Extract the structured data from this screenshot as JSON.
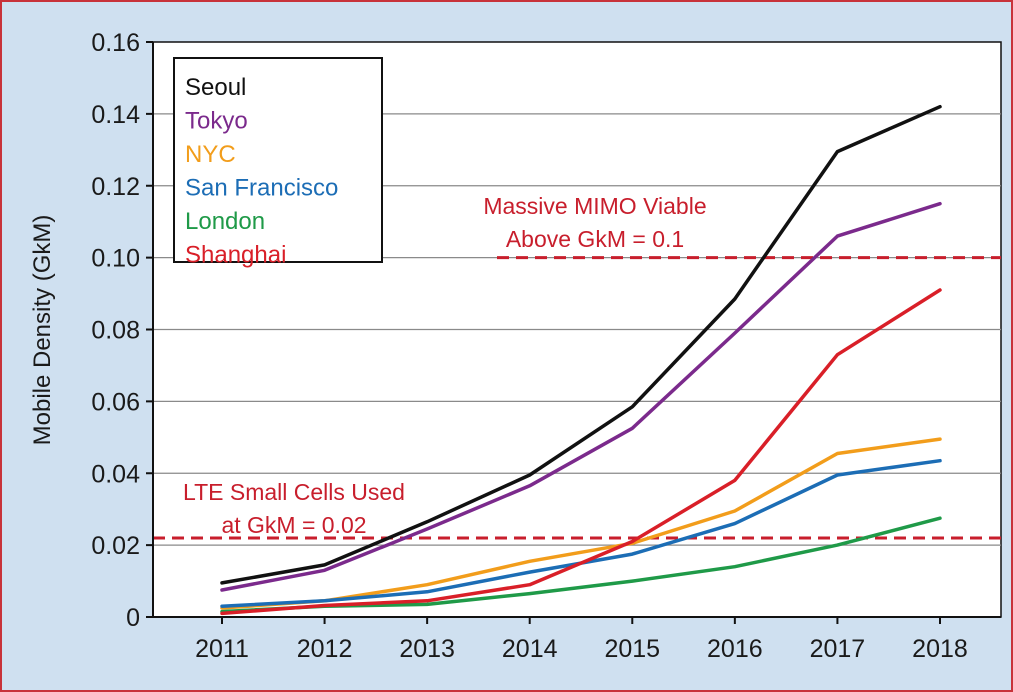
{
  "chart_data": {
    "type": "line",
    "title": "",
    "xlabel": "",
    "ylabel": "Mobile Density (GkM)",
    "categories": [
      "2011",
      "2012",
      "2013",
      "2014",
      "2015",
      "2016",
      "2017",
      "2018"
    ],
    "ylim": [
      0,
      0.16
    ],
    "y_ticks": [
      0,
      0.02,
      0.04,
      0.06,
      0.08,
      0.1,
      0.12,
      0.14,
      0.16
    ],
    "y_tick_labels": [
      "0",
      "0.02",
      "0.04",
      "0.06",
      "0.08",
      "0.10",
      "0.12",
      "0.14",
      "0.16"
    ],
    "grid": true,
    "legend_position": "top-left",
    "series": [
      {
        "name": "Seoul",
        "color": "#111111",
        "values": [
          0.0095,
          0.0145,
          0.0265,
          0.0395,
          0.0585,
          0.0885,
          0.1295,
          0.142
        ]
      },
      {
        "name": "Tokyo",
        "color": "#7b2a8c",
        "values": [
          0.0075,
          0.013,
          0.0245,
          0.0365,
          0.0525,
          0.079,
          0.106,
          0.115
        ]
      },
      {
        "name": "NYC",
        "color": "#f29d1b",
        "values": [
          0.0025,
          0.0045,
          0.009,
          0.0155,
          0.0205,
          0.0295,
          0.0455,
          0.0495
        ]
      },
      {
        "name": "San Francisco",
        "color": "#1c6db5",
        "values": [
          0.003,
          0.0045,
          0.007,
          0.0125,
          0.0175,
          0.026,
          0.0395,
          0.0435
        ]
      },
      {
        "name": "London",
        "color": "#1f9a48",
        "values": [
          0.0015,
          0.003,
          0.0035,
          0.0065,
          0.01,
          0.014,
          0.02,
          0.0275
        ]
      },
      {
        "name": "Shanghai",
        "color": "#d91f28",
        "values": [
          0.001,
          0.0032,
          0.0045,
          0.009,
          0.021,
          0.038,
          0.073,
          0.091
        ]
      }
    ],
    "reference_lines": [
      {
        "value": 0.1,
        "color": "#c81e2c",
        "label_line1": "Massive MIMO Viable",
        "label_line2": "Above GkM = 0.1"
      },
      {
        "value": 0.022,
        "color": "#c81e2c",
        "label_line1": "LTE Small Cells Used",
        "label_line2": "at GkM = 0.02"
      }
    ]
  }
}
